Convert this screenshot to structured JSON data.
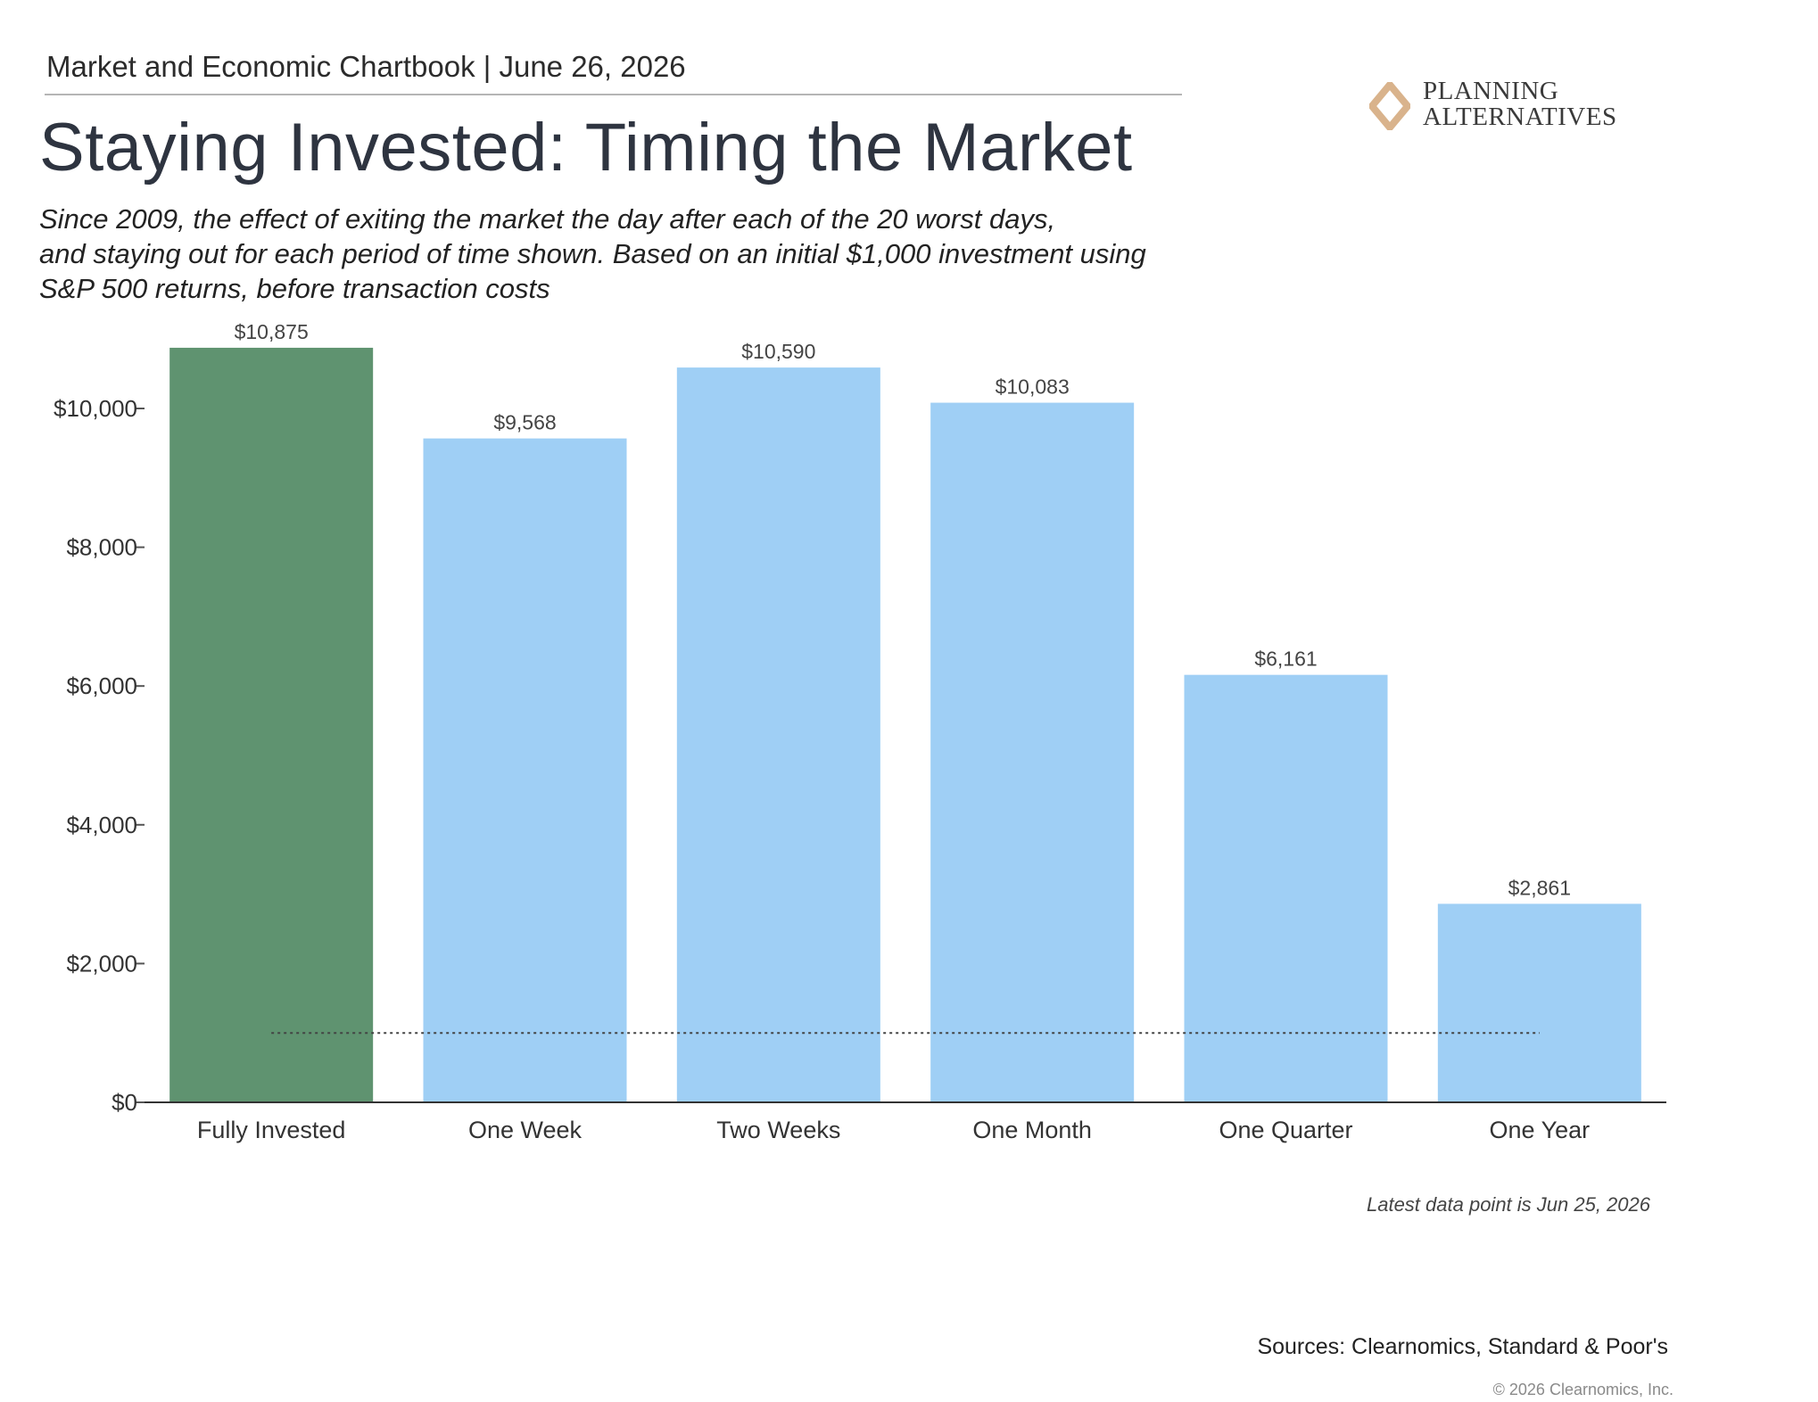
{
  "header": {
    "chartbook": "Market and Economic Chartbook | June 26, 2026"
  },
  "logo": {
    "icon": "diamond-logo-icon",
    "line1": "PLANNING",
    "line2": "ALTERNATIVES",
    "color": "#d9b38c"
  },
  "chart_data": {
    "type": "bar",
    "title": "Staying Invested: Timing the Market",
    "subtitle_lines": [
      "Since 2009, the effect of exiting the market the day after each of the 20 worst days,",
      "and staying out for each period of time shown. Based on an initial $1,000 investment using",
      "S&P 500 returns, before transaction costs"
    ],
    "categories": [
      "Fully Invested",
      "One Week",
      "Two Weeks",
      "One Month",
      "One Quarter",
      "One Year"
    ],
    "values": [
      10875,
      9568,
      10590,
      10083,
      6161,
      2861
    ],
    "value_labels": [
      "$10,875",
      "$9,568",
      "$10,590",
      "$10,083",
      "$6,161",
      "$2,861"
    ],
    "colors": [
      "#5f9370",
      "#9fcff5",
      "#9fcff5",
      "#9fcff5",
      "#9fcff5",
      "#9fcff5"
    ],
    "y_ticks": [
      0,
      2000,
      4000,
      6000,
      8000,
      10000
    ],
    "y_tick_labels": [
      "$0",
      "$2,000",
      "$4,000",
      "$6,000",
      "$8,000",
      "$10,000"
    ],
    "ylim": [
      0,
      11000
    ],
    "reference_line": {
      "value": 1000,
      "style": "dotted"
    },
    "xlabel": "",
    "ylabel": "",
    "grid": false,
    "legend": "none"
  },
  "footer": {
    "latest": "Latest data point is Jun 25, 2026",
    "sources": "Sources: Clearnomics, Standard & Poor's",
    "copyright": "© 2026 Clearnomics, Inc."
  }
}
